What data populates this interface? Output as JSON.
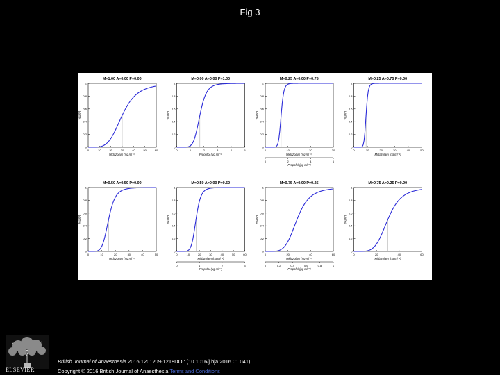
{
  "header": {
    "title": "Fig 3"
  },
  "footer": {
    "journal": "British Journal of Anaesthesia",
    "citation": " 2016 1201209-1218DOI: (10.1016/j.bja.2016.01.041)",
    "copyright": "Copyright © 2016 British Journal of Anaesthesia",
    "terms_link": "Terms and Conditions"
  },
  "publisher": {
    "name": "ELSEVIER"
  },
  "colors": {
    "curve": "#2a2ad8",
    "background": "#000000",
    "panel": "#ffffff"
  },
  "chart_data": [
    {
      "type": "line",
      "title": "M=1.00 A=0.00 P=0.00",
      "ylabel": "%UXR",
      "xlabel": "Midazolam (ng ml⁻¹)",
      "xlim": [
        0,
        60
      ],
      "xticks": [
        "0",
        "10",
        "20",
        "30",
        "40",
        "50",
        "60"
      ],
      "ylim": [
        0,
        1
      ],
      "yticks": [
        "0",
        "0.2",
        "0.4",
        "0.6",
        "0.8",
        "1"
      ],
      "series": [
        {
          "ec50": 30,
          "gamma": 4.5
        }
      ],
      "marker_x": 30
    },
    {
      "type": "line",
      "title": "M=0.00 A=0.00 P=1.00",
      "ylabel": "%UXR",
      "xlabel": "Propofol (μg ml⁻¹)",
      "xlim": [
        0,
        5
      ],
      "xticks": [
        "0",
        "1",
        "2",
        "3",
        "4",
        "5"
      ],
      "ylim": [
        0,
        1
      ],
      "yticks": [
        "0",
        "0.2",
        "0.4",
        "0.6",
        "0.8",
        "1"
      ],
      "series": [
        {
          "ec50": 1.7,
          "gamma": 7
        }
      ],
      "marker_x": 1.7
    },
    {
      "type": "line",
      "title": "M=0.25 A=0.00 P=0.75",
      "ylabel": "%UXR",
      "xlabel": "Midazolam (ng ml⁻¹)",
      "xlim": [
        0,
        30
      ],
      "xticks": [
        "0",
        "10",
        "20",
        "30"
      ],
      "ylim": [
        0,
        1
      ],
      "yticks": [
        "0",
        "0.2",
        "0.4",
        "0.6",
        "0.8",
        "1"
      ],
      "series": [
        {
          "ec50": 7,
          "gamma": 12
        }
      ],
      "marker_x": 7,
      "x2label": "Propofol (μg ml⁻¹)",
      "x2lim": [
        0,
        6
      ],
      "x2ticks": [
        "0",
        "2",
        "4",
        "6"
      ]
    },
    {
      "type": "line",
      "title": "M=0.25 A=0.75 P=0.00",
      "ylabel": "%UXR",
      "xlabel": "Midazolam (ng ml⁻¹)",
      "xlim": [
        0,
        50
      ],
      "xticks": [
        "0",
        "10",
        "20",
        "30",
        "40",
        "50"
      ],
      "ylim": [
        0,
        1
      ],
      "yticks": [
        "0",
        "0.2",
        "0.4",
        "0.6",
        "0.8",
        "1"
      ],
      "series": [
        {
          "ec50": 9,
          "gamma": 12
        }
      ],
      "marker_x": 9
    },
    {
      "type": "line",
      "title": "M=0.50 A=0.50 P=0.00",
      "ylabel": "%UXR",
      "xlabel": "Midazolam (ng ml⁻¹)",
      "xlim": [
        0,
        50
      ],
      "xticks": [
        "0",
        "10",
        "20",
        "30",
        "40",
        "50"
      ],
      "ylim": [
        0,
        1
      ],
      "yticks": [
        "0",
        "0.2",
        "0.4",
        "0.6",
        "0.8",
        "1"
      ],
      "series": [
        {
          "ec50": 15,
          "gamma": 6
        }
      ],
      "marker_x": 15
    },
    {
      "type": "line",
      "title": "M=0.50 A=0.00 P=0.50",
      "ylabel": "%UXR",
      "xlabel": "Midazolam (ng ml⁻¹)",
      "xlim": [
        0,
        60
      ],
      "xticks": [
        "0",
        "10",
        "20",
        "30",
        "40",
        "50",
        "60"
      ],
      "ylim": [
        0,
        1
      ],
      "yticks": [
        "0",
        "0.2",
        "0.4",
        "0.6",
        "0.8",
        "1"
      ],
      "series": [
        {
          "ec50": 17,
          "gamma": 8
        }
      ],
      "marker_x": 17,
      "x2label": "Propofol (μg ml⁻¹)",
      "x2lim": [
        0,
        3
      ],
      "x2ticks": [
        "0",
        "1",
        "2",
        "3"
      ]
    },
    {
      "type": "line",
      "title": "M=0.75 A=0.00 P=0.25",
      "ylabel": "%UXR",
      "xlabel": "Midazolam (ng ml⁻¹)",
      "xlim": [
        0,
        60
      ],
      "xticks": [
        "0",
        "20",
        "40",
        "60"
      ],
      "ylim": [
        0,
        1
      ],
      "yticks": [
        "0",
        "0.2",
        "0.4",
        "0.6",
        "0.8",
        "1"
      ],
      "series": [
        {
          "ec50": 28,
          "gamma": 5
        }
      ],
      "marker_x": 28,
      "x2label": "Propofol (μg ml⁻¹)",
      "x2lim": [
        0,
        1
      ],
      "x2ticks": [
        "0",
        "0.2",
        "0.4",
        "0.6",
        "0.8",
        "1"
      ]
    },
    {
      "type": "line",
      "title": "M=0.75 A=0.25 P=0.00",
      "ylabel": "%UXR",
      "xlabel": "Midazolam (ng ml⁻¹)",
      "xlim": [
        0,
        60
      ],
      "xticks": [
        "0",
        "20",
        "40",
        "60"
      ],
      "ylim": [
        0,
        1
      ],
      "yticks": [
        "0",
        "0.2",
        "0.4",
        "0.6",
        "0.8",
        "1"
      ],
      "series": [
        {
          "ec50": 30,
          "gamma": 5
        }
      ],
      "marker_x": 30
    }
  ]
}
